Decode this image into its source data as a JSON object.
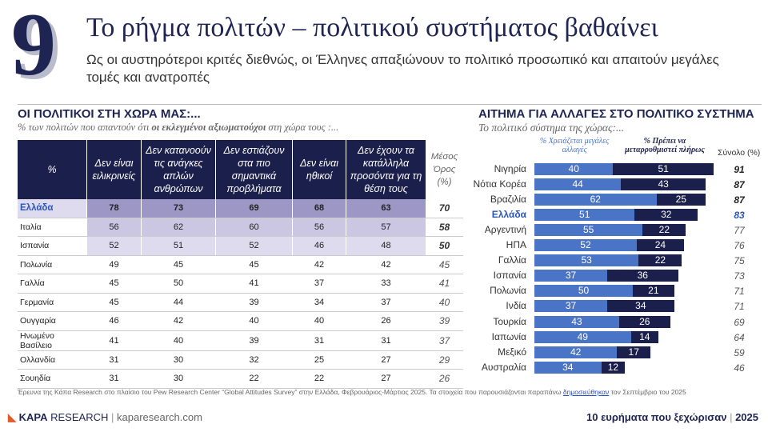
{
  "header": {
    "number": "9",
    "title": "Το ρήγμα πολιτών – πολιτικού συστήματος βαθαίνει",
    "subtitle": "Ως οι αυστηρότεροι κριτές διεθνώς, οι Έλληνες απαξιώνουν το πολιτικό προσωπικό και απαιτούν μεγάλες τομές και ανατροπές"
  },
  "table": {
    "title": "ΟΙ ΠΟΛΙΤΙΚΟΙ ΣΤΗ ΧΩΡΑ ΜΑΣ:...",
    "subtitle": [
      "% των πολιτών που απαντούν ότι ",
      "οι εκλεγμένοι αξιωματούχοι",
      " στη χώρα τους :..."
    ],
    "columns": [
      "%",
      "Δεν είναι ειλικρινείς",
      "Δεν κατανοούν τις ανάγκες απλών ανθρώπων",
      "Δεν εστιάζουν στα πιο σημαντικά προβλήματα",
      "Δεν είναι ηθικοί",
      "Δεν έχουν τα κατάλληλα προσόντα για τη θέση τους",
      "Μέσος Όρος (%)"
    ],
    "rows": [
      [
        "Ελλάδα",
        78,
        73,
        69,
        68,
        63,
        70
      ],
      [
        "Ιταλία",
        56,
        62,
        60,
        56,
        57,
        58
      ],
      [
        "Ισπανία",
        52,
        51,
        52,
        46,
        48,
        50
      ],
      [
        "Πολωνία",
        49,
        45,
        45,
        42,
        42,
        45
      ],
      [
        "Γαλλία",
        45,
        50,
        41,
        37,
        33,
        41
      ],
      [
        "Γερμανία",
        45,
        44,
        39,
        34,
        37,
        40
      ],
      [
        "Ουγγαρία",
        46,
        42,
        40,
        40,
        26,
        39
      ],
      [
        "Ηνωμένο Βασίλειο",
        41,
        40,
        39,
        31,
        31,
        37
      ],
      [
        "Ολλανδία",
        31,
        30,
        32,
        25,
        27,
        29
      ],
      [
        "Σουηδία",
        31,
        30,
        22,
        22,
        27,
        26
      ]
    ]
  },
  "chart_data": {
    "type": "bar",
    "title": "ΑΙΤΗΜΑ ΓΙΑ ΑΛΛΑΓΕΣ ΣΤΟ ΠΟΛΙΤΙΚΟ ΣΥΣΤΗΜΑ",
    "subtitle": "Το πολιτικό σύστημα της χώρας:...",
    "categories": [
      "Νιγηρία",
      "Νότια Κορέα",
      "Βραζιλία",
      "Ελλάδα",
      "Αργεντινή",
      "ΗΠΑ",
      "Γαλλία",
      "Ισπανία",
      "Πολωνία",
      "Ινδία",
      "Τουρκία",
      "Ιαπωνία",
      "Μεξικό",
      "Αυστραλία"
    ],
    "series": [
      {
        "name": "% Χρειάζεται μεγάλες αλλαγές",
        "color": "#4a74c6",
        "values": [
          40,
          44,
          62,
          51,
          55,
          52,
          53,
          37,
          50,
          37,
          43,
          49,
          42,
          34
        ]
      },
      {
        "name": "% Πρέπει να μεταρρυθμιστεί πλήρως",
        "color": "#1b1f4b",
        "values": [
          51,
          43,
          25,
          32,
          22,
          24,
          22,
          36,
          21,
          34,
          26,
          14,
          17,
          12
        ]
      }
    ],
    "total_label": "Σύνολο (%)",
    "totals": [
      91,
      87,
      87,
      83,
      77,
      76,
      75,
      73,
      71,
      71,
      69,
      64,
      59,
      46
    ]
  },
  "footer": {
    "source": [
      "Έρευνα της Κάπα Research στο πλαίσιο του Pew Research Center “Global Attitudes Survey” στην Ελλάδα, Φεβρουάριος-Μάρτιος 2025. Τα στοιχεία που παρουσιάζονται παραπάνω ",
      "δημοσιεύθηκαν",
      " τον Σεπτέμβριο του 2025"
    ],
    "logo": [
      "KAPA",
      "RESEARCH"
    ],
    "site": "kaparesearch.com",
    "tagline": "10 ευρήματα που ξεχώρισαν",
    "year": "2025"
  }
}
